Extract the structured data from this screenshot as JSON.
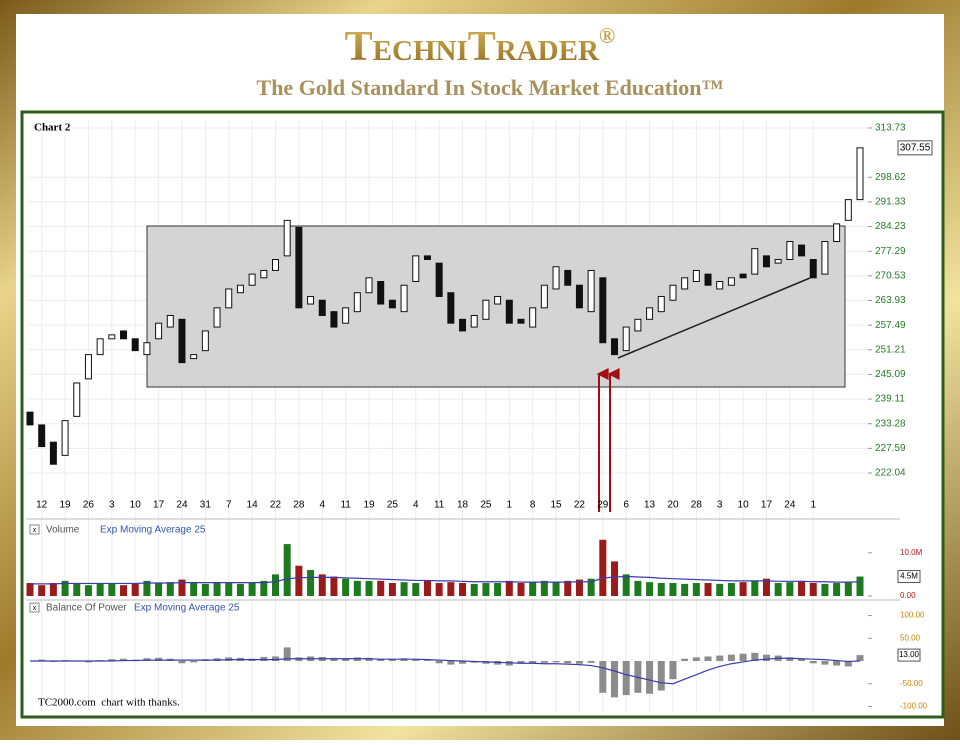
{
  "header": {
    "title": "TechniTrader",
    "title_mark": "®",
    "subtitle": "The Gold Standard In Stock Market Education™"
  },
  "credit": "TC2000.com  chart with thanks.",
  "chart_data": [
    {
      "type": "candlestick",
      "title": "Chart 2",
      "categories": [
        null,
        "12",
        null,
        "19",
        null,
        "26",
        null,
        "3",
        null,
        "10",
        null,
        "17",
        null,
        "24",
        null,
        "31",
        null,
        "7",
        null,
        "14",
        null,
        "22",
        null,
        "28",
        null,
        "4",
        null,
        "11",
        null,
        "19",
        null,
        "25",
        null,
        "4",
        null,
        "11",
        null,
        "18",
        null,
        "25",
        null,
        "1",
        null,
        "8",
        null,
        "15",
        null,
        "22",
        null,
        "29",
        null,
        "6",
        null,
        "13",
        null,
        "20",
        null,
        "28",
        null,
        "3",
        null,
        "10",
        null,
        "17",
        null,
        "24",
        null,
        "1",
        null,
        null,
        null,
        null
      ],
      "open": [
        236,
        233,
        229,
        226,
        235,
        244,
        250,
        254,
        256,
        254,
        250,
        254,
        257,
        259,
        249,
        251,
        257,
        262,
        266,
        268,
        270,
        272,
        276,
        284,
        263,
        264,
        261,
        258,
        261,
        266,
        269,
        264,
        261,
        269,
        276,
        274,
        266,
        259,
        257,
        259,
        263,
        264,
        259,
        257,
        262,
        267,
        272,
        268,
        261,
        270,
        254,
        251,
        256,
        259,
        261,
        264,
        267,
        269,
        271,
        267,
        268,
        271,
        271,
        276,
        274,
        275,
        279,
        275,
        271,
        280,
        286,
        292
      ],
      "close": [
        233,
        228,
        224,
        234,
        243,
        250,
        254,
        255,
        254,
        251,
        253,
        258,
        260,
        248,
        250,
        256,
        262,
        267,
        268,
        271,
        272,
        275,
        286,
        262,
        265,
        260,
        257,
        262,
        266,
        270,
        263,
        262,
        268,
        276,
        275,
        265,
        258,
        256,
        260,
        264,
        265,
        258,
        258,
        262,
        268,
        273,
        268,
        262,
        272,
        253,
        250,
        257,
        259,
        262,
        265,
        268,
        270,
        272,
        268,
        269,
        270,
        270,
        278,
        273,
        275,
        280,
        276,
        270,
        280,
        285,
        292,
        307.55
      ],
      "up_color": "#ffffff",
      "down_color": "#111111",
      "ylim": [
        217.2,
        316.25
      ],
      "log_scale": true,
      "grid": true,
      "yticks": [
        313.73,
        298.62,
        291.33,
        284.23,
        277.29,
        270.53,
        263.93,
        257.49,
        251.21,
        245.09,
        239.11,
        233.28,
        227.59,
        222.04
      ]
    },
    {
      "type": "bar",
      "title": "Volume",
      "series": [
        {
          "name": "Volume",
          "up_color": "#1e7a1e",
          "down_color": "#9b1b1b",
          "values": [
            3,
            2.5,
            3,
            3.5,
            3,
            2.5,
            3,
            2.8,
            2.5,
            3,
            3.5,
            3,
            3.2,
            3.8,
            3,
            2.8,
            3,
            3.2,
            2.8,
            3,
            3.5,
            5,
            12,
            7,
            6,
            5,
            4.5,
            4,
            3.5,
            3.5,
            3.5,
            3,
            3.2,
            3,
            3.5,
            3,
            3.2,
            3,
            2.8,
            3,
            3,
            3.5,
            3,
            3.2,
            3.5,
            3.2,
            3.5,
            3.8,
            4,
            13,
            8,
            5,
            3.5,
            3.2,
            3,
            3,
            2.8,
            3,
            3,
            2.8,
            3,
            3.2,
            3.5,
            4,
            3,
            3.2,
            3.5,
            3,
            2.8,
            3,
            3.2,
            4.5
          ]
        },
        {
          "name": "Exp Moving Average 25",
          "type": "line",
          "color": "#3b3bb0",
          "values": [
            2.8,
            2.8,
            2.8,
            2.9,
            2.9,
            2.9,
            2.9,
            2.9,
            2.9,
            2.9,
            3,
            3,
            3,
            3.1,
            3.1,
            3.1,
            3.1,
            3.1,
            3.1,
            3.1,
            3.1,
            3.3,
            4,
            4.2,
            4.3,
            4.3,
            4.3,
            4.2,
            4.1,
            4,
            3.9,
            3.8,
            3.7,
            3.6,
            3.6,
            3.5,
            3.5,
            3.4,
            3.3,
            3.3,
            3.3,
            3.3,
            3.2,
            3.2,
            3.2,
            3.2,
            3.2,
            3.3,
            3.3,
            4.1,
            4.4,
            4.5,
            4.4,
            4.3,
            4.1,
            4,
            3.9,
            3.8,
            3.7,
            3.6,
            3.5,
            3.5,
            3.5,
            3.5,
            3.4,
            3.4,
            3.4,
            3.3,
            3.3,
            3.2,
            3.2,
            3.3
          ]
        }
      ],
      "ylim": [
        0,
        14.1
      ],
      "yticks": [
        {
          "value": 0,
          "label": "0.00"
        },
        {
          "value": 10,
          "label": "10.0M"
        }
      ],
      "marker": {
        "value": 4.5,
        "label": "4.5M"
      }
    },
    {
      "type": "bar",
      "title": "Balance Of Power",
      "series": [
        {
          "name": "Balance Of Power",
          "color": "#8c8c8c",
          "values": [
            0,
            3,
            -2,
            2,
            -1,
            -3,
            2,
            4,
            5,
            3,
            6,
            7,
            5,
            -5,
            -3,
            4,
            6,
            8,
            7,
            5,
            9,
            10,
            30,
            8,
            10,
            9,
            7,
            6,
            8,
            7,
            5,
            4,
            6,
            3,
            2,
            -5,
            -8,
            -6,
            -4,
            -6,
            -8,
            -10,
            -6,
            -5,
            -4,
            -3,
            -5,
            -6,
            -4,
            -70,
            -80,
            -75,
            -70,
            -72,
            -65,
            -40,
            5,
            8,
            10,
            12,
            14,
            16,
            18,
            14,
            12,
            8,
            5,
            -5,
            -8,
            -10,
            -12,
            13
          ]
        },
        {
          "name": "Exp Moving Average 25",
          "type": "line",
          "color": "#3b3bb0",
          "values": [
            0,
            0,
            0,
            0,
            0,
            0,
            0,
            0,
            1,
            1,
            2,
            2,
            2,
            2,
            2,
            2,
            2,
            3,
            3,
            3,
            3,
            3,
            5,
            5,
            5,
            5,
            5,
            5,
            5,
            5,
            4,
            4,
            4,
            4,
            3,
            2,
            1,
            0,
            -1,
            -2,
            -3,
            -4,
            -5,
            -5,
            -6,
            -6,
            -7,
            -8,
            -10,
            -15,
            -22,
            -30,
            -36,
            -42,
            -48,
            -50,
            -40,
            -30,
            -20,
            -12,
            -6,
            -2,
            2,
            4,
            6,
            6,
            5,
            4,
            3,
            1,
            -1,
            0
          ]
        }
      ],
      "ylim": [
        -110,
        110
      ],
      "yticks": [
        {
          "value": 100,
          "label": "100.00"
        },
        {
          "value": 50,
          "label": "50.00"
        },
        {
          "value": -50,
          "label": "-50.00"
        },
        {
          "value": -100,
          "label": "-100.00"
        }
      ],
      "marker": {
        "value": 13,
        "label": "13.00"
      }
    }
  ]
}
